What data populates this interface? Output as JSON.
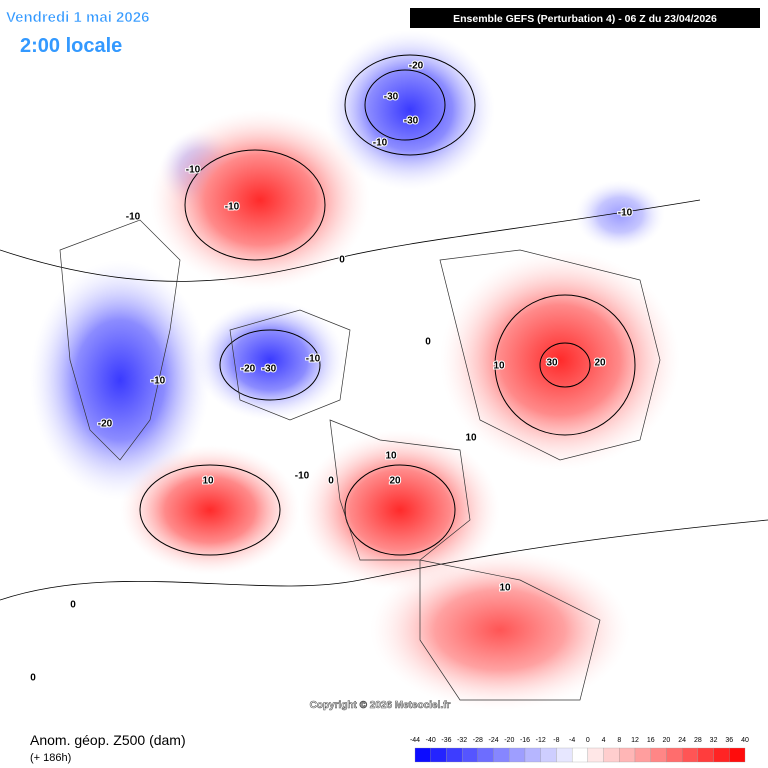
{
  "header": {
    "date": "Vendredi 1 mai 2026",
    "time": "2:00 locale",
    "model": "Ensemble GEFS  (Perturbation 4)  -  06 Z du 23/04/2026"
  },
  "map": {
    "contour_labels": [
      -20,
      -30,
      -30,
      -10,
      -10,
      -10,
      -10,
      -10,
      -20,
      -30,
      -10,
      -10,
      -20,
      10,
      -10,
      0,
      20,
      10,
      10,
      10,
      30,
      20,
      10,
      0,
      0,
      0,
      0
    ],
    "copyright": "Copyright © 2026 Meteociel.fr"
  },
  "footer": {
    "title": "Anom. géop. Z500 (dam)",
    "lead": "(+ 186h)",
    "scale": [
      -44,
      -40,
      -36,
      -32,
      -28,
      -24,
      -20,
      -16,
      -12,
      -8,
      -4,
      0,
      4,
      8,
      12,
      16,
      20,
      24,
      28,
      32,
      36,
      40
    ]
  }
}
